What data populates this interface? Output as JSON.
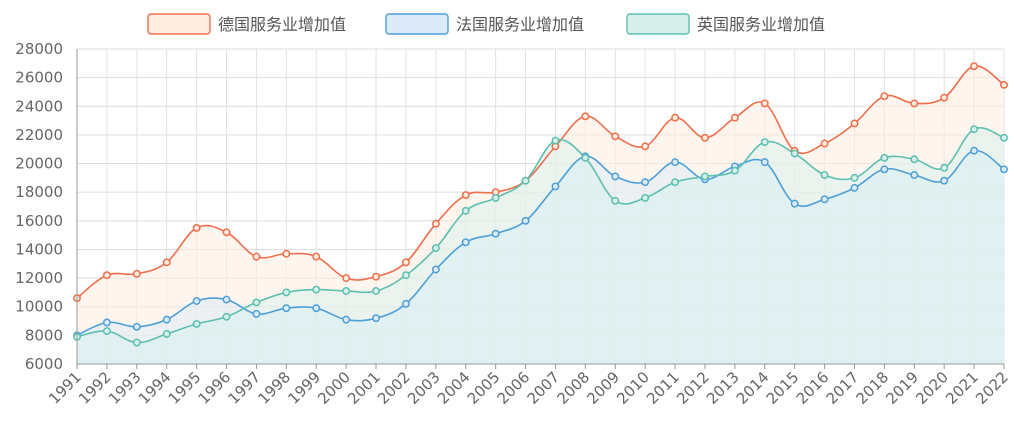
{
  "chart_data": {
    "type": "area",
    "x": [
      "1991",
      "1992",
      "1993",
      "1994",
      "1995",
      "1996",
      "1997",
      "1998",
      "1999",
      "2000",
      "2001",
      "2002",
      "2003",
      "2004",
      "2005",
      "2006",
      "2007",
      "2008",
      "2009",
      "2010",
      "2011",
      "2012",
      "2013",
      "2014",
      "2015",
      "2016",
      "2017",
      "2018",
      "2019",
      "2020",
      "2021",
      "2022"
    ],
    "ylim": [
      6000,
      28000
    ],
    "yticks": [
      6000,
      8000,
      10000,
      12000,
      14000,
      16000,
      18000,
      20000,
      22000,
      24000,
      26000,
      28000
    ],
    "grid": true,
    "legend": "top",
    "series": [
      {
        "name": "德国服务业增加值",
        "color": "#ee6e4c",
        "fill": "#fdeee0",
        "values": [
          10600,
          12200,
          12300,
          13100,
          15500,
          15200,
          13500,
          13700,
          13500,
          12000,
          12100,
          13100,
          15800,
          17800,
          18000,
          18800,
          21200,
          23300,
          21900,
          21200,
          23200,
          21800,
          23200,
          24200,
          20900,
          21400,
          22800,
          24700,
          24200,
          24600,
          26800,
          25500
        ]
      },
      {
        "name": "法国服务业增加值",
        "color": "#4d9fd8",
        "fill": "#dcebf7",
        "values": [
          8000,
          8900,
          8600,
          9100,
          10400,
          10500,
          9500,
          9900,
          9900,
          9100,
          9200,
          10200,
          12600,
          14500,
          15100,
          16000,
          18400,
          20500,
          19100,
          18700,
          20100,
          18900,
          19800,
          20100,
          17200,
          17500,
          18300,
          19600,
          19200,
          18800,
          20900,
          19600
        ]
      },
      {
        "name": "英国服务业增加值",
        "color": "#5cbfb0",
        "fill": "#d8f0ec",
        "values": [
          7900,
          8300,
          7500,
          8100,
          8800,
          9300,
          10300,
          11000,
          11200,
          11100,
          11100,
          12200,
          14100,
          16700,
          17600,
          18800,
          21600,
          20400,
          17400,
          17600,
          18700,
          19100,
          19500,
          21500,
          20700,
          19200,
          19000,
          20400,
          20300,
          19700,
          22400,
          21800
        ]
      }
    ]
  }
}
